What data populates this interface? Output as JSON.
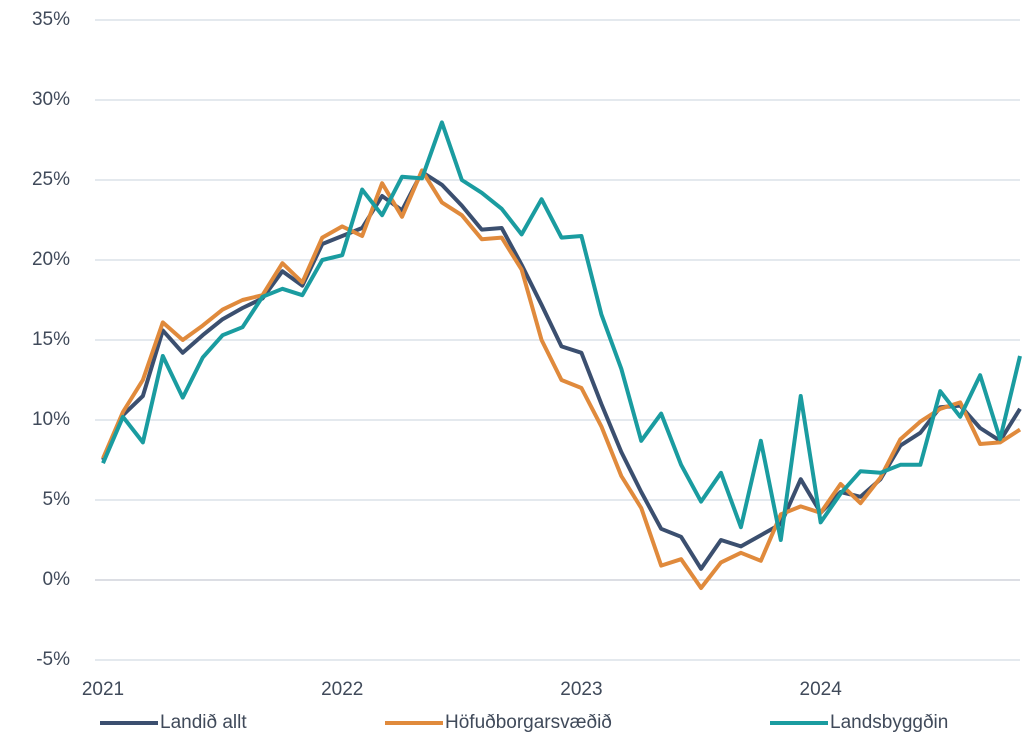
{
  "chart_data": {
    "type": "line",
    "categories": [
      "2021",
      null,
      null,
      null,
      null,
      null,
      null,
      null,
      null,
      null,
      null,
      null,
      "2022",
      null,
      null,
      null,
      null,
      null,
      null,
      null,
      null,
      null,
      null,
      null,
      "2023",
      null,
      null,
      null,
      null,
      null,
      null,
      null,
      null,
      null,
      null,
      null,
      "2024",
      null,
      null,
      null,
      null,
      null,
      null,
      null,
      null,
      null,
      null
    ],
    "series": [
      {
        "name": "Landið allt",
        "color": "#3b4f6f",
        "values": [
          7.5,
          10.3,
          11.5,
          15.6,
          14.2,
          15.3,
          16.3,
          17.0,
          17.6,
          19.3,
          18.4,
          21.0,
          21.5,
          22.0,
          24.0,
          23.1,
          25.5,
          24.7,
          23.4,
          21.9,
          22.0,
          19.7,
          17.2,
          14.6,
          14.2,
          11.0,
          8.0,
          5.5,
          3.2,
          2.7,
          0.7,
          2.5,
          2.1,
          2.8,
          3.5,
          6.3,
          4.2,
          5.5,
          5.2,
          6.3,
          8.4,
          9.2,
          10.8,
          10.9,
          9.5,
          8.7,
          10.7
        ]
      },
      {
        "name": "Höfuðborgarsvæðið",
        "color": "#e08a3c",
        "values": [
          7.6,
          10.5,
          12.5,
          16.1,
          15.0,
          15.9,
          16.9,
          17.5,
          17.8,
          19.8,
          18.6,
          21.4,
          22.1,
          21.5,
          24.8,
          22.7,
          25.6,
          23.6,
          22.8,
          21.3,
          21.4,
          19.4,
          15.0,
          12.5,
          12.0,
          9.6,
          6.5,
          4.5,
          0.9,
          1.3,
          -0.5,
          1.1,
          1.7,
          1.2,
          4.1,
          4.6,
          4.2,
          6.0,
          4.8,
          6.4,
          8.8,
          9.9,
          10.7,
          11.1,
          8.5,
          8.6,
          9.4
        ]
      },
      {
        "name": "Landsbyggðin",
        "color": "#1a9ca0",
        "values": [
          7.3,
          10.2,
          8.6,
          14.0,
          11.4,
          13.9,
          15.3,
          15.8,
          17.7,
          18.2,
          17.8,
          20.0,
          20.3,
          24.4,
          22.8,
          25.2,
          25.1,
          28.6,
          25.0,
          24.2,
          23.2,
          21.6,
          23.8,
          21.4,
          21.5,
          16.6,
          13.2,
          8.7,
          10.4,
          7.2,
          4.9,
          6.7,
          3.3,
          8.7,
          2.5,
          11.5,
          3.6,
          5.4,
          6.8,
          6.7,
          7.2,
          7.2,
          11.8,
          10.2,
          12.8,
          8.8,
          14.0
        ]
      }
    ],
    "ylim": [
      -5,
      35
    ],
    "yticks": [
      {
        "value": -5,
        "label": "-5%"
      },
      {
        "value": 0,
        "label": "0%"
      },
      {
        "value": 5,
        "label": "5%"
      },
      {
        "value": 10,
        "label": "10%"
      },
      {
        "value": 15,
        "label": "15%"
      },
      {
        "value": 20,
        "label": "20%"
      },
      {
        "value": 25,
        "label": "25%"
      },
      {
        "value": 30,
        "label": "30%"
      },
      {
        "value": 35,
        "label": "35%"
      }
    ],
    "grid": true,
    "legend": "bottom"
  }
}
